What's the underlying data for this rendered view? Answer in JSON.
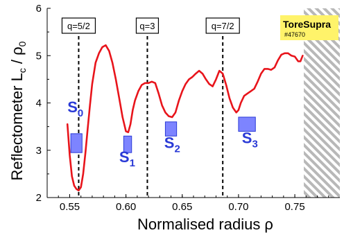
{
  "chart_data": {
    "type": "line",
    "xlabel": "Normalised radius  ρ",
    "ylabel_parts": {
      "main": "Reflectometer  L",
      "sub": "c",
      "tail": " / ρ",
      "tail_sub": "0"
    },
    "xlim": [
      0.53,
      0.79
    ],
    "ylim": [
      2,
      6
    ],
    "xticks": [
      0.55,
      0.6,
      0.65,
      0.7,
      0.75
    ],
    "xtick_labels": [
      "0.55",
      "0.60",
      "0.65",
      "0.70",
      "0.75"
    ],
    "yticks": [
      2,
      3,
      4,
      5,
      6
    ],
    "ytick_labels": [
      "2",
      "3",
      "4",
      "5",
      "6"
    ],
    "grid": false,
    "series": [
      {
        "color": "#e8141b",
        "x": [
          0.548,
          0.55,
          0.552,
          0.554,
          0.556,
          0.558,
          0.56,
          0.562,
          0.564,
          0.566,
          0.568,
          0.57,
          0.573,
          0.576,
          0.579,
          0.582,
          0.585,
          0.588,
          0.591,
          0.594,
          0.597,
          0.6,
          0.602,
          0.604,
          0.606,
          0.608,
          0.611,
          0.614,
          0.617,
          0.62,
          0.623,
          0.626,
          0.629,
          0.632,
          0.635,
          0.638,
          0.641,
          0.644,
          0.647,
          0.65,
          0.653,
          0.656,
          0.659,
          0.662,
          0.665,
          0.668,
          0.671,
          0.674,
          0.677,
          0.68,
          0.683,
          0.686,
          0.689,
          0.692,
          0.695,
          0.698,
          0.7,
          0.702,
          0.705,
          0.708,
          0.711,
          0.714,
          0.717,
          0.72,
          0.723,
          0.726,
          0.729,
          0.732,
          0.735,
          0.738,
          0.741,
          0.744,
          0.747,
          0.75,
          0.753,
          0.755,
          0.757
        ],
        "y": [
          3.55,
          2.9,
          2.45,
          2.25,
          2.18,
          2.15,
          2.22,
          2.5,
          2.95,
          3.45,
          3.95,
          4.4,
          4.85,
          5.05,
          5.18,
          5.22,
          5.1,
          4.85,
          4.5,
          4.1,
          3.7,
          3.4,
          3.38,
          3.55,
          3.85,
          4.05,
          4.25,
          4.38,
          4.42,
          4.42,
          4.45,
          4.42,
          4.2,
          3.95,
          3.8,
          3.72,
          3.7,
          3.8,
          4.05,
          4.25,
          4.4,
          4.5,
          4.55,
          4.62,
          4.68,
          4.62,
          4.5,
          4.4,
          4.35,
          4.5,
          4.68,
          4.62,
          4.38,
          4.1,
          3.9,
          3.8,
          3.85,
          4.0,
          4.15,
          4.2,
          4.25,
          4.3,
          4.45,
          4.62,
          4.72,
          4.72,
          4.7,
          4.75,
          4.9,
          5.02,
          5.05,
          5.05,
          5.0,
          4.98,
          4.88,
          4.88,
          5.0
        ]
      }
    ],
    "q_lines": [
      {
        "label": "q=5/2",
        "x": 0.558
      },
      {
        "label": "q=3",
        "x": 0.619
      },
      {
        "label": "q=7/2",
        "x": 0.686
      }
    ],
    "regions": [
      {
        "label": "S",
        "sub": "0",
        "x0": 0.551,
        "x1": 0.561,
        "y0": 2.95,
        "y1": 3.35,
        "label_x": 0.548,
        "label_y": 3.8
      },
      {
        "label": "S",
        "sub": "1",
        "x0": 0.598,
        "x1": 0.605,
        "y0": 2.95,
        "y1": 3.3,
        "label_x": 0.594,
        "label_y": 2.75
      },
      {
        "label": "S",
        "sub": "2",
        "x0": 0.635,
        "x1": 0.645,
        "y0": 3.3,
        "y1": 3.6,
        "label_x": 0.634,
        "label_y": 3.05
      },
      {
        "label": "S",
        "sub": "3",
        "x0": 0.7,
        "x1": 0.715,
        "y0": 3.4,
        "y1": 3.7,
        "label_x": 0.703,
        "label_y": 3.15
      }
    ],
    "hatched_from_x": 0.758,
    "brand": {
      "title": "ToreSupra",
      "shot": "#47670"
    }
  },
  "colors": {
    "curve": "#e8141b",
    "region_fill": "#7d84ff",
    "region_stroke": "#2a3ad6",
    "label": "#2a3ad6",
    "brand_bg": "#fff36a"
  }
}
